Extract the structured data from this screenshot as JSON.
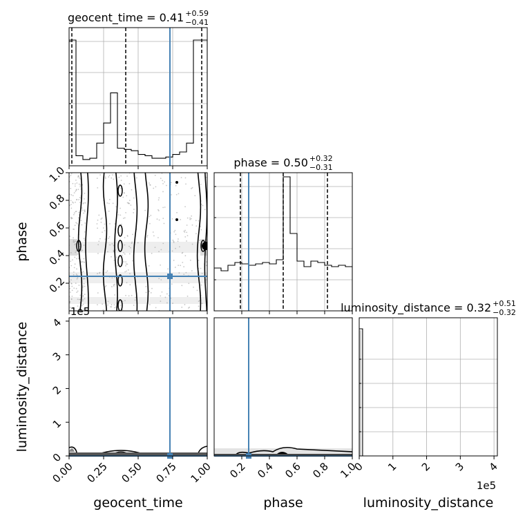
{
  "chart_data": {
    "type": "corner",
    "parameters": [
      "geocent_time",
      "phase",
      "luminosity_distance"
    ],
    "truths": {
      "geocent_time": 0.73,
      "phase": 0.25,
      "luminosity_distance": 0
    },
    "colors": {
      "truth": "#4682b4",
      "hist": "#000000",
      "grid": "#b0b0b0",
      "scatter": "#999999"
    },
    "titles": {
      "geocent_time": {
        "name": "geocent_time",
        "median": "0.41",
        "plus": "+0.59",
        "minus": "−0.41"
      },
      "phase": {
        "name": "phase",
        "median": "0.50",
        "plus": "+0.32",
        "minus": "−0.31"
      },
      "luminosity_distance": {
        "name": "luminosity_distance",
        "median": "0.32",
        "plus": "+0.51",
        "minus": "−0.32"
      }
    },
    "axis_labels": {
      "geocent_time": "geocent_time",
      "phase": "phase",
      "luminosity_distance": "luminosity_distance"
    },
    "ticks": {
      "geocent_time": {
        "values": [
          0,
          0.25,
          0.5,
          0.75,
          1.0
        ],
        "labels": [
          "0.00",
          "0.25",
          "0.50",
          "0.75",
          "1.00"
        ],
        "range": [
          0,
          1
        ]
      },
      "phase": {
        "values": [
          0.2,
          0.4,
          0.6,
          0.8,
          1.0
        ],
        "labels": [
          "0.2",
          "0.4",
          "0.6",
          "0.8",
          "1.0"
        ],
        "range": [
          0,
          1
        ]
      },
      "luminosity_distance": {
        "values": [
          0,
          100000,
          200000,
          300000,
          400000
        ],
        "labels": [
          "0",
          "1",
          "2",
          "3",
          "4"
        ],
        "range": [
          0,
          410000
        ],
        "offset": "1e5"
      }
    },
    "quantiles": {
      "geocent_time": [
        0.0,
        0.41,
        1.0
      ],
      "phase": [
        0.19,
        0.5,
        0.82
      ]
    },
    "hist_geocent_time": {
      "edges": [
        0,
        0.05,
        0.1,
        0.15,
        0.2,
        0.25,
        0.3,
        0.35,
        0.4,
        0.45,
        0.5,
        0.55,
        0.6,
        0.65,
        0.7,
        0.75,
        0.8,
        0.85,
        0.9,
        0.95,
        1.0
      ],
      "counts": [
        1.0,
        0.08,
        0.05,
        0.06,
        0.18,
        0.34,
        0.58,
        0.14,
        0.13,
        0.12,
        0.09,
        0.08,
        0.06,
        0.06,
        0.07,
        0.09,
        0.11,
        0.18,
        1.0,
        1.0
      ]
    },
    "hist_phase": {
      "edges": [
        0,
        0.05,
        0.1,
        0.15,
        0.2,
        0.25,
        0.3,
        0.35,
        0.4,
        0.45,
        0.5,
        0.55,
        0.6,
        0.65,
        0.7,
        0.75,
        0.8,
        0.85,
        0.9,
        0.95,
        1.0
      ],
      "counts": [
        0.31,
        0.29,
        0.33,
        0.35,
        0.34,
        0.33,
        0.34,
        0.35,
        0.34,
        0.37,
        0.97,
        0.56,
        0.36,
        0.32,
        0.36,
        0.35,
        0.33,
        0.32,
        0.33,
        0.32
      ]
    },
    "hist_luminosity_distance": {
      "edges": [
        0,
        5000,
        10000
      ],
      "counts": [
        0.92,
        0.92
      ]
    }
  }
}
